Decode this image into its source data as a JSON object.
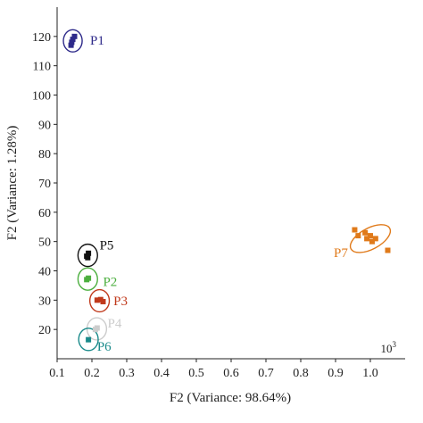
{
  "chart_data": {
    "type": "scatter",
    "xlabel": "F2 (Variance: 98.64%)",
    "ylabel": "F2 (Variance: 1.28%)",
    "xlim": [
      0.1,
      1.1
    ],
    "ylim": [
      10,
      130
    ],
    "x_ticks": [
      "0.1",
      "0.2",
      "0.3",
      "0.4",
      "0.5",
      "0.6",
      "0.7",
      "0.8",
      "0.9",
      "1.0"
    ],
    "x_tick_values": [
      0.1,
      0.2,
      0.3,
      0.4,
      0.5,
      0.6,
      0.7,
      0.8,
      0.9,
      1.0
    ],
    "y_ticks": [
      "20",
      "30",
      "40",
      "50",
      "60",
      "70",
      "80",
      "90",
      "100",
      "110",
      "120"
    ],
    "y_tick_values": [
      20,
      30,
      40,
      50,
      60,
      70,
      80,
      90,
      100,
      110,
      120
    ],
    "scale_note": "10",
    "scale_note_exp": "3",
    "grid": false,
    "series": [
      {
        "name": "P1",
        "color": "#2e2a8a",
        "x": [
          0.14,
          0.145,
          0.15,
          0.142
        ],
        "y": [
          117,
          119,
          120,
          118
        ],
        "ellipse": {
          "cx": 0.145,
          "cy": 118.5,
          "rx": 0.027,
          "ry": 3.8
        }
      },
      {
        "name": "P5",
        "color": "#111111",
        "x": [
          0.185,
          0.19,
          0.188
        ],
        "y": [
          45,
          46,
          44.5
        ],
        "ellipse": {
          "cx": 0.188,
          "cy": 45.3,
          "rx": 0.028,
          "ry": 3.8
        }
      },
      {
        "name": "P2",
        "color": "#4caf3f",
        "x": [
          0.185,
          0.19
        ],
        "y": [
          37,
          37.5
        ],
        "ellipse": {
          "cx": 0.188,
          "cy": 37.2,
          "rx": 0.028,
          "ry": 3.8
        }
      },
      {
        "name": "P3",
        "color": "#c0391b",
        "x": [
          0.215,
          0.225,
          0.232
        ],
        "y": [
          30,
          30.2,
          29.5
        ],
        "ellipse": {
          "cx": 0.222,
          "cy": 29.8,
          "rx": 0.028,
          "ry": 3.8
        }
      },
      {
        "name": "P4",
        "color": "#cccccc",
        "x": [
          0.21,
          0.215
        ],
        "y": [
          20,
          20.5
        ],
        "ellipse": {
          "cx": 0.214,
          "cy": 20.2,
          "rx": 0.028,
          "ry": 3.8
        }
      },
      {
        "name": "P6",
        "color": "#1a8a8a",
        "x": [
          0.19
        ],
        "y": [
          16.5
        ],
        "ellipse": {
          "cx": 0.19,
          "cy": 16.6,
          "rx": 0.028,
          "ry": 3.8
        }
      },
      {
        "name": "P7",
        "color": "#e07a1a",
        "x": [
          0.955,
          0.965,
          0.985,
          0.99,
          1.0,
          1.005,
          1.015,
          1.05
        ],
        "y": [
          54,
          52,
          53,
          51,
          52,
          50,
          51,
          47
        ],
        "ellipse": {
          "cx": 1.0,
          "cy": 51,
          "rx": 0.063,
          "ry": 3.6,
          "angle": -28
        }
      }
    ],
    "labels": [
      {
        "text": "P1",
        "x": 0.195,
        "y": 118.8,
        "color": "#2e2a8a"
      },
      {
        "text": "P5",
        "x": 0.222,
        "y": 48.8,
        "color": "#111111"
      },
      {
        "text": "P2",
        "x": 0.232,
        "y": 36.3,
        "color": "#4caf3f"
      },
      {
        "text": "P3",
        "x": 0.262,
        "y": 29.8,
        "color": "#c0391b"
      },
      {
        "text": "P4",
        "x": 0.245,
        "y": 22.2,
        "color": "#cccccc"
      },
      {
        "text": "P6",
        "x": 0.215,
        "y": 14.2,
        "color": "#1a8a8a"
      },
      {
        "text": "P7",
        "x": 0.895,
        "y": 46.3,
        "color": "#e07a1a"
      }
    ]
  }
}
